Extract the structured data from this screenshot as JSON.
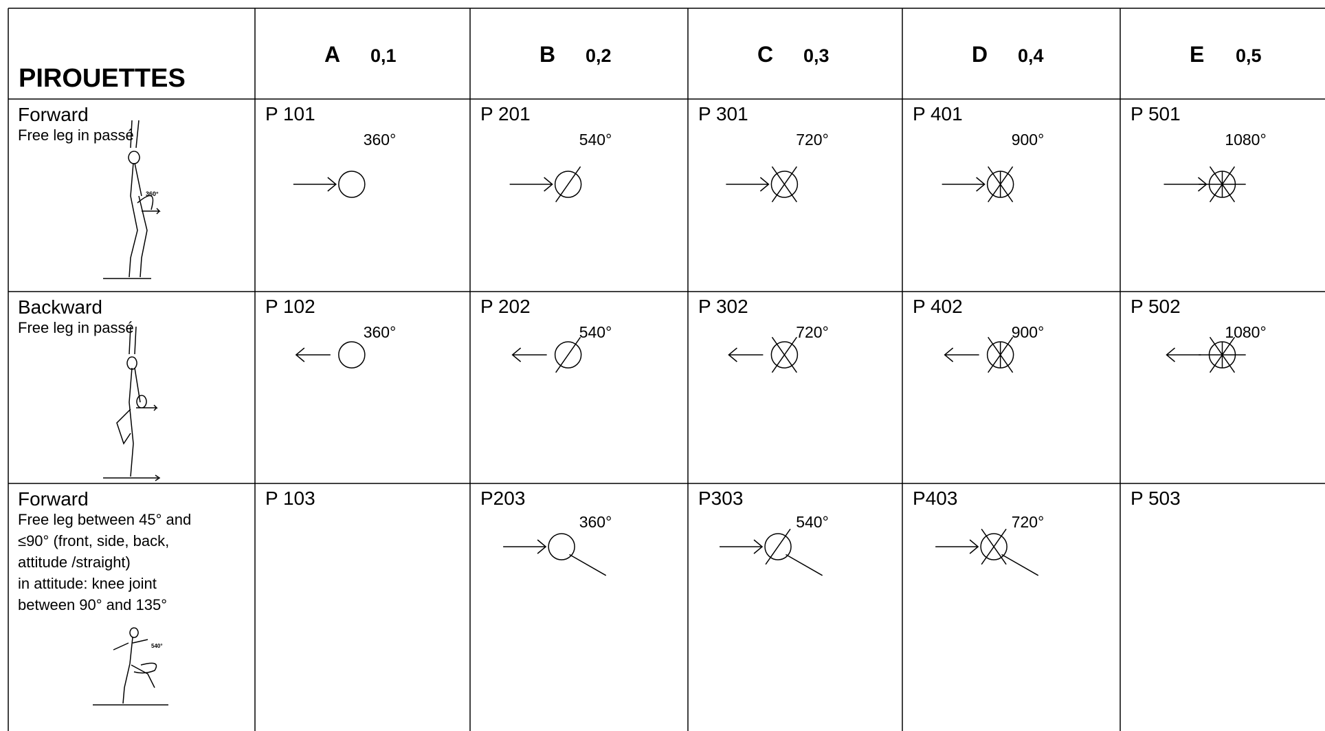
{
  "header": {
    "title": "PIROUETTES",
    "columns": [
      {
        "letter": "A",
        "value": "0,1"
      },
      {
        "letter": "B",
        "value": "0,2"
      },
      {
        "letter": "C",
        "value": "0,3"
      },
      {
        "letter": "D",
        "value": "0,4"
      },
      {
        "letter": "E",
        "value": "0,5"
      }
    ]
  },
  "rows": [
    {
      "label": "Forward",
      "description": [
        "Free leg in passé"
      ],
      "figure_label": "360°",
      "cells": [
        {
          "code": "P 101",
          "degree": "360°"
        },
        {
          "code": "P 201",
          "degree": "540°"
        },
        {
          "code": "P 301",
          "degree": "720°"
        },
        {
          "code": "P 401",
          "degree": "900°"
        },
        {
          "code": "P 501",
          "degree": "1080°"
        }
      ]
    },
    {
      "label": "Backward",
      "description": [
        "Free leg in passé"
      ],
      "cells": [
        {
          "code": "P 102",
          "degree": "360°"
        },
        {
          "code": "P 202",
          "degree": "540°"
        },
        {
          "code": "P 302",
          "degree": "720°"
        },
        {
          "code": "P 402",
          "degree": "900°"
        },
        {
          "code": "P 502",
          "degree": "1080°"
        }
      ]
    },
    {
      "label": "Forward",
      "description": [
        "Free leg between 45° and",
        "≤90° (front, side, back,",
        "attitude /straight)",
        "in attitude: knee joint",
        "between 90° and 135°"
      ],
      "figure_label": "540°",
      "cells": [
        {
          "code": "P 103"
        },
        {
          "code": "P203",
          "degree": "360°"
        },
        {
          "code": "P303",
          "degree": "540°"
        },
        {
          "code": "P403",
          "degree": "720°"
        },
        {
          "code": "P 503"
        }
      ]
    }
  ]
}
